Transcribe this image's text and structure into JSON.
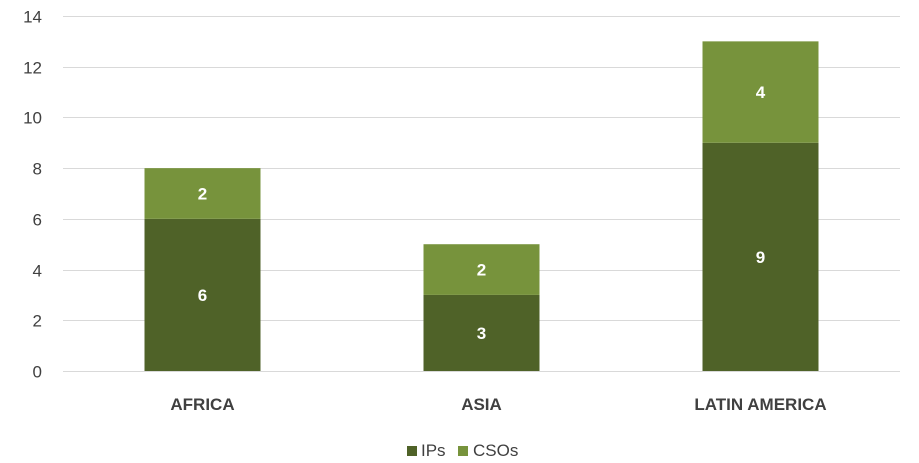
{
  "chart_data": {
    "type": "bar",
    "stacked": true,
    "categories": [
      "AFRICA",
      "ASIA",
      "LATIN AMERICA"
    ],
    "series": [
      {
        "name": "IPs",
        "values": [
          6,
          3,
          9
        ],
        "color": "#4f6228"
      },
      {
        "name": "CSOs",
        "values": [
          2,
          2,
          4
        ],
        "color": "#77933c"
      }
    ],
    "title": "",
    "xlabel": "",
    "ylabel": "",
    "ylim": [
      0,
      14
    ],
    "yticks": [
      0,
      2,
      4,
      6,
      8,
      10,
      12,
      14
    ],
    "grid": true,
    "legend": "bottom",
    "data_labels": true,
    "gridline_color": "#d9d9d9"
  }
}
